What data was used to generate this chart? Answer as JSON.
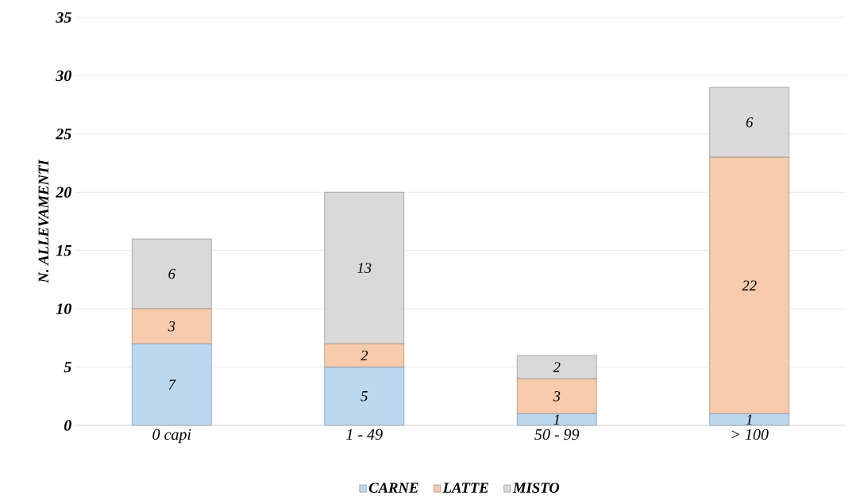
{
  "chart_data": {
    "type": "bar",
    "stacked": true,
    "ylabel": "N. ALLEVAMENTI",
    "categories": [
      "0 capi",
      "1 - 49",
      "50 - 99",
      "> 100"
    ],
    "series": [
      {
        "name": "CARNE",
        "color": "#bdd7ee",
        "values": [
          7,
          5,
          1,
          1
        ]
      },
      {
        "name": "LATTE",
        "color": "#f8cbad",
        "values": [
          3,
          2,
          3,
          22
        ]
      },
      {
        "name": "MISTO",
        "color": "#d9d9d9",
        "values": [
          6,
          13,
          2,
          6
        ]
      }
    ],
    "ylim": [
      0,
      35
    ],
    "yticks": [
      0,
      5,
      10,
      15,
      20,
      25,
      30,
      35
    ],
    "grid": "y",
    "legend": "bottom",
    "data_labels": true
  }
}
